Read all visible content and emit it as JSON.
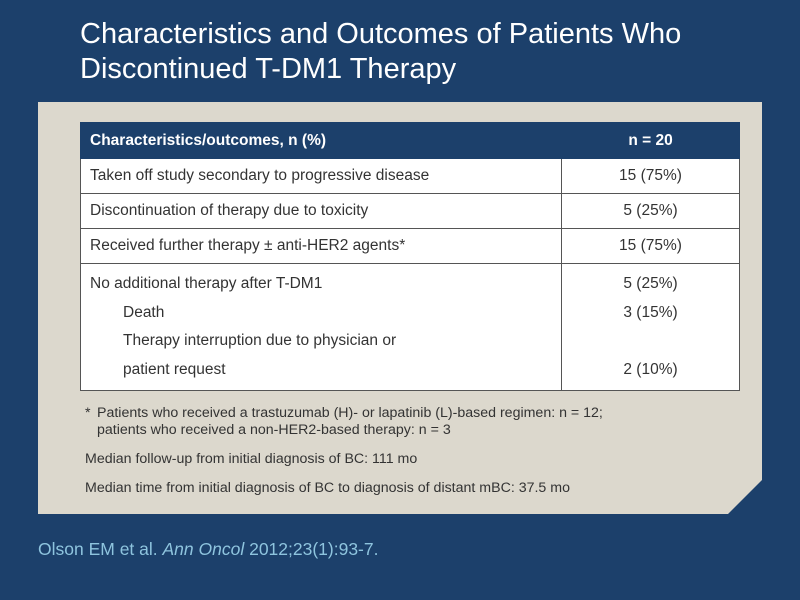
{
  "slide": {
    "title_line1": "Characteristics and Outcomes of Patients Who",
    "title_line2": "Discontinued T-DM1 Therapy"
  },
  "table": {
    "headers": [
      "Characteristics/outcomes, n (%)",
      "n = 20"
    ],
    "rows": [
      {
        "label": "Taken off study secondary to progressive disease",
        "value": "15 (75%)"
      },
      {
        "label": "Discontinuation of therapy due to toxicity",
        "value": "5 (25%)"
      },
      {
        "label": "Received further therapy ± anti-HER2 agents*",
        "value": "15 (75%)"
      }
    ],
    "group": {
      "label": "No additional therapy after T-DM1",
      "value": "5 (25%)",
      "sub1_label": "Death",
      "sub1_value": "3 (15%)",
      "sub2_line1": "Therapy interruption due to physician or",
      "sub2_line2": "patient request",
      "sub2_value": "2 (10%)"
    }
  },
  "notes": {
    "footnote_mark": "*",
    "footnote_line1": "Patients who received a trastuzumab (H)- or lapatinib (L)-based regimen: n = 12;",
    "footnote_line2": "patients who received a non-HER2-based therapy: n = 3",
    "median_followup": "Median follow-up from initial diagnosis of BC: 111 mo",
    "median_time": "Median time from initial diagnosis of BC to diagnosis of distant mBC: 37.5 mo"
  },
  "citation": {
    "authors": "Olson EM et al. ",
    "journal": "Ann Oncol",
    "ref": " 2012;23(1):93-7."
  },
  "colors": {
    "background": "#1c406b",
    "panel": "#dcd8cd",
    "header_text": "#ffffff",
    "citation": "#8ec4de"
  }
}
